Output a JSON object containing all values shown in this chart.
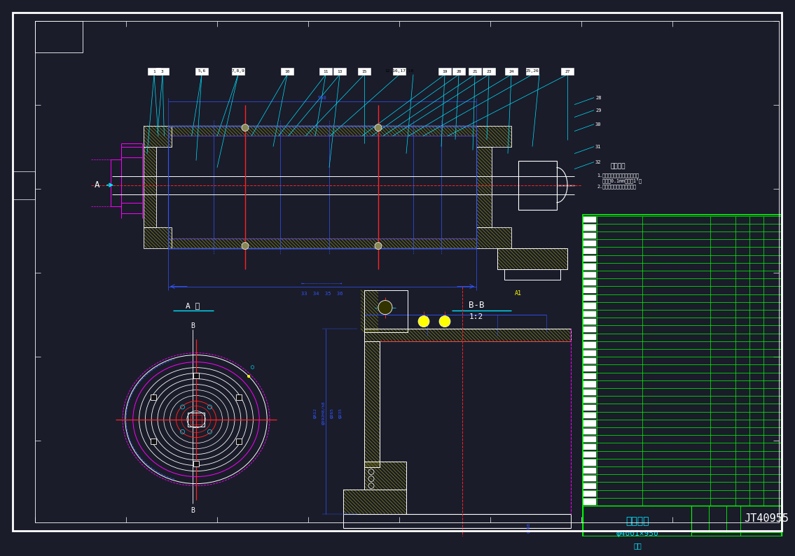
{
  "bg_dark": "#1a1c2a",
  "line_colors": {
    "white": "#ffffff",
    "cyan": "#00e5ff",
    "blue": "#3355ff",
    "bright_blue": "#4477ff",
    "red": "#ff2222",
    "magenta": "#ff00ff",
    "yellow": "#ffff00",
    "green": "#00ff00",
    "orange": "#ffaa00",
    "dark_yellow": "#aaaa00",
    "pink": "#ff88ff",
    "teal": "#00cccc"
  },
  "title_text": "卷筒装配",
  "subtitle_text": "φ4001×950",
  "drawing_number": "JT40955",
  "section_label1": "A 向",
  "section_label2": "B-B",
  "section_label3": "1:2",
  "border_color": "#ffffff",
  "title_block_color": "#00ff00"
}
